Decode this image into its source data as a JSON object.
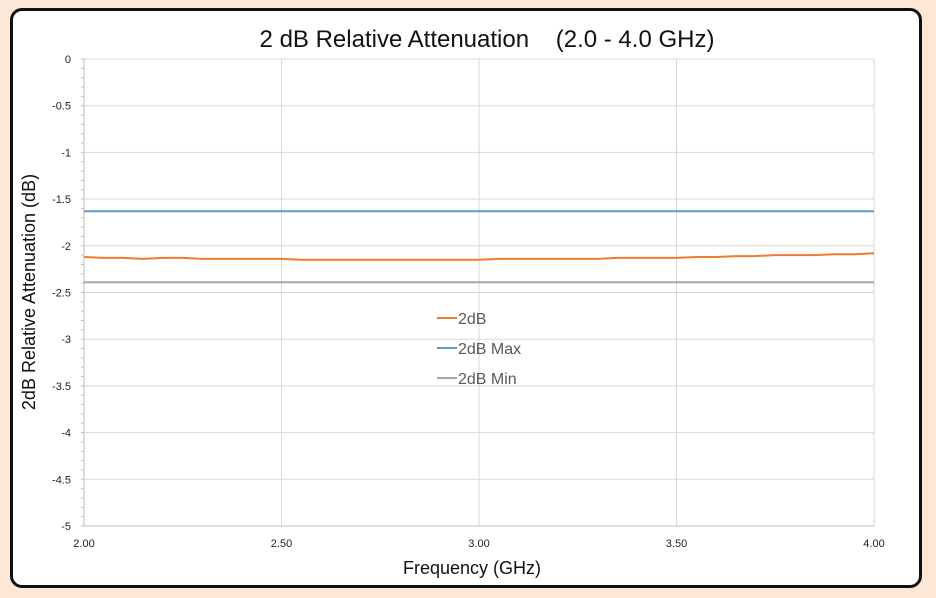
{
  "chart_data": {
    "type": "line",
    "title": "2 dB Relative Attenuation    (2.0 - 4.0 GHz)",
    "xlabel": "Frequency (GHz)",
    "ylabel": "2dB Relative Attenuation (dB)",
    "xlim": [
      2.0,
      4.0
    ],
    "ylim": [
      -5,
      0
    ],
    "x_ticks": [
      "2.00",
      "2.50",
      "3.00",
      "3.50",
      "4.00"
    ],
    "y_ticks": [
      "0",
      "-0.5",
      "-1",
      "-1.5",
      "-2",
      "-2.5",
      "-3",
      "-3.5",
      "-4",
      "-4.5",
      "-5"
    ],
    "grid": true,
    "legend_position": "center",
    "x": [
      2.0,
      2.05,
      2.1,
      2.15,
      2.2,
      2.25,
      2.3,
      2.35,
      2.4,
      2.45,
      2.5,
      2.55,
      2.6,
      2.65,
      2.7,
      2.75,
      2.8,
      2.85,
      2.9,
      2.95,
      3.0,
      3.05,
      3.1,
      3.15,
      3.2,
      3.25,
      3.3,
      3.35,
      3.4,
      3.45,
      3.5,
      3.55,
      3.6,
      3.65,
      3.7,
      3.75,
      3.8,
      3.85,
      3.9,
      3.95,
      4.0
    ],
    "series": [
      {
        "name": "2dB",
        "color": "#ed7d31",
        "values": [
          -2.12,
          -2.13,
          -2.13,
          -2.14,
          -2.13,
          -2.13,
          -2.14,
          -2.14,
          -2.14,
          -2.14,
          -2.14,
          -2.15,
          -2.15,
          -2.15,
          -2.15,
          -2.15,
          -2.15,
          -2.15,
          -2.15,
          -2.15,
          -2.15,
          -2.14,
          -2.14,
          -2.14,
          -2.14,
          -2.14,
          -2.14,
          -2.13,
          -2.13,
          -2.13,
          -2.13,
          -2.12,
          -2.12,
          -2.11,
          -2.11,
          -2.1,
          -2.1,
          -2.1,
          -2.09,
          -2.09,
          -2.08
        ]
      },
      {
        "name": "2dB Max",
        "color": "#5b9bd5",
        "values": [
          -1.63,
          -1.63,
          -1.63,
          -1.63,
          -1.63,
          -1.63,
          -1.63,
          -1.63,
          -1.63,
          -1.63,
          -1.63,
          -1.63,
          -1.63,
          -1.63,
          -1.63,
          -1.63,
          -1.63,
          -1.63,
          -1.63,
          -1.63,
          -1.63,
          -1.63,
          -1.63,
          -1.63,
          -1.63,
          -1.63,
          -1.63,
          -1.63,
          -1.63,
          -1.63,
          -1.63,
          -1.63,
          -1.63,
          -1.63,
          -1.63,
          -1.63,
          -1.63,
          -1.63,
          -1.63,
          -1.63,
          -1.63
        ]
      },
      {
        "name": "2dB Min",
        "color": "#a5a5a5",
        "values": [
          -2.39,
          -2.39,
          -2.39,
          -2.39,
          -2.39,
          -2.39,
          -2.39,
          -2.39,
          -2.39,
          -2.39,
          -2.39,
          -2.39,
          -2.39,
          -2.39,
          -2.39,
          -2.39,
          -2.39,
          -2.39,
          -2.39,
          -2.39,
          -2.39,
          -2.39,
          -2.39,
          -2.39,
          -2.39,
          -2.39,
          -2.39,
          -2.39,
          -2.39,
          -2.39,
          -2.39,
          -2.39,
          -2.39,
          -2.39,
          -2.39,
          -2.39,
          -2.39,
          -2.39,
          -2.39,
          -2.39,
          -2.39
        ]
      }
    ]
  }
}
